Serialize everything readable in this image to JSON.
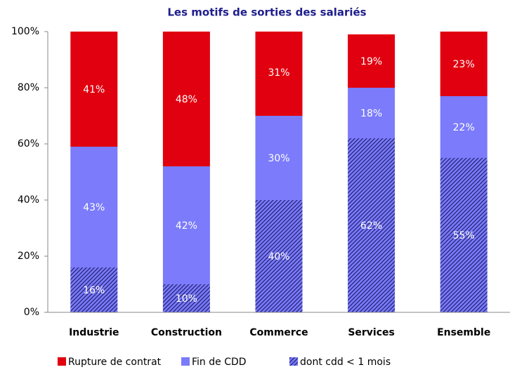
{
  "chart_data": {
    "type": "stacked_bar",
    "title": "Les motifs de sorties des salariés",
    "categories": [
      "Industrie",
      "Construction",
      "Commerce",
      "Services",
      "Ensemble"
    ],
    "series": [
      {
        "name": "Rupture de contrat",
        "color": "#e1000f",
        "values": [
          41,
          48,
          31,
          19,
          23
        ],
        "value_labels": [
          "41%",
          "48%",
          "31%",
          "19%",
          "23%"
        ]
      },
      {
        "name": "Fin de CDD",
        "color": "#7b7bfb",
        "values": [
          43,
          42,
          30,
          18,
          22
        ],
        "value_labels": [
          "43%",
          "42%",
          "30%",
          "18%",
          "22%"
        ]
      },
      {
        "name": "dont cdd < 1 mois",
        "color": "#7b7bfb",
        "hatch": "#1e1e6e",
        "values": [
          16,
          10,
          40,
          62,
          55
        ],
        "value_labels": [
          "16%",
          "10%",
          "40%",
          "62%",
          "55%"
        ]
      }
    ],
    "ylim": [
      0,
      100
    ],
    "yticks": [
      {
        "value": 0,
        "label": "0%"
      },
      {
        "value": 20,
        "label": "20%"
      },
      {
        "value": 40,
        "label": "40%"
      },
      {
        "value": 60,
        "label": "60%"
      },
      {
        "value": 80,
        "label": "80%"
      },
      {
        "value": 100,
        "label": "100%"
      }
    ]
  }
}
